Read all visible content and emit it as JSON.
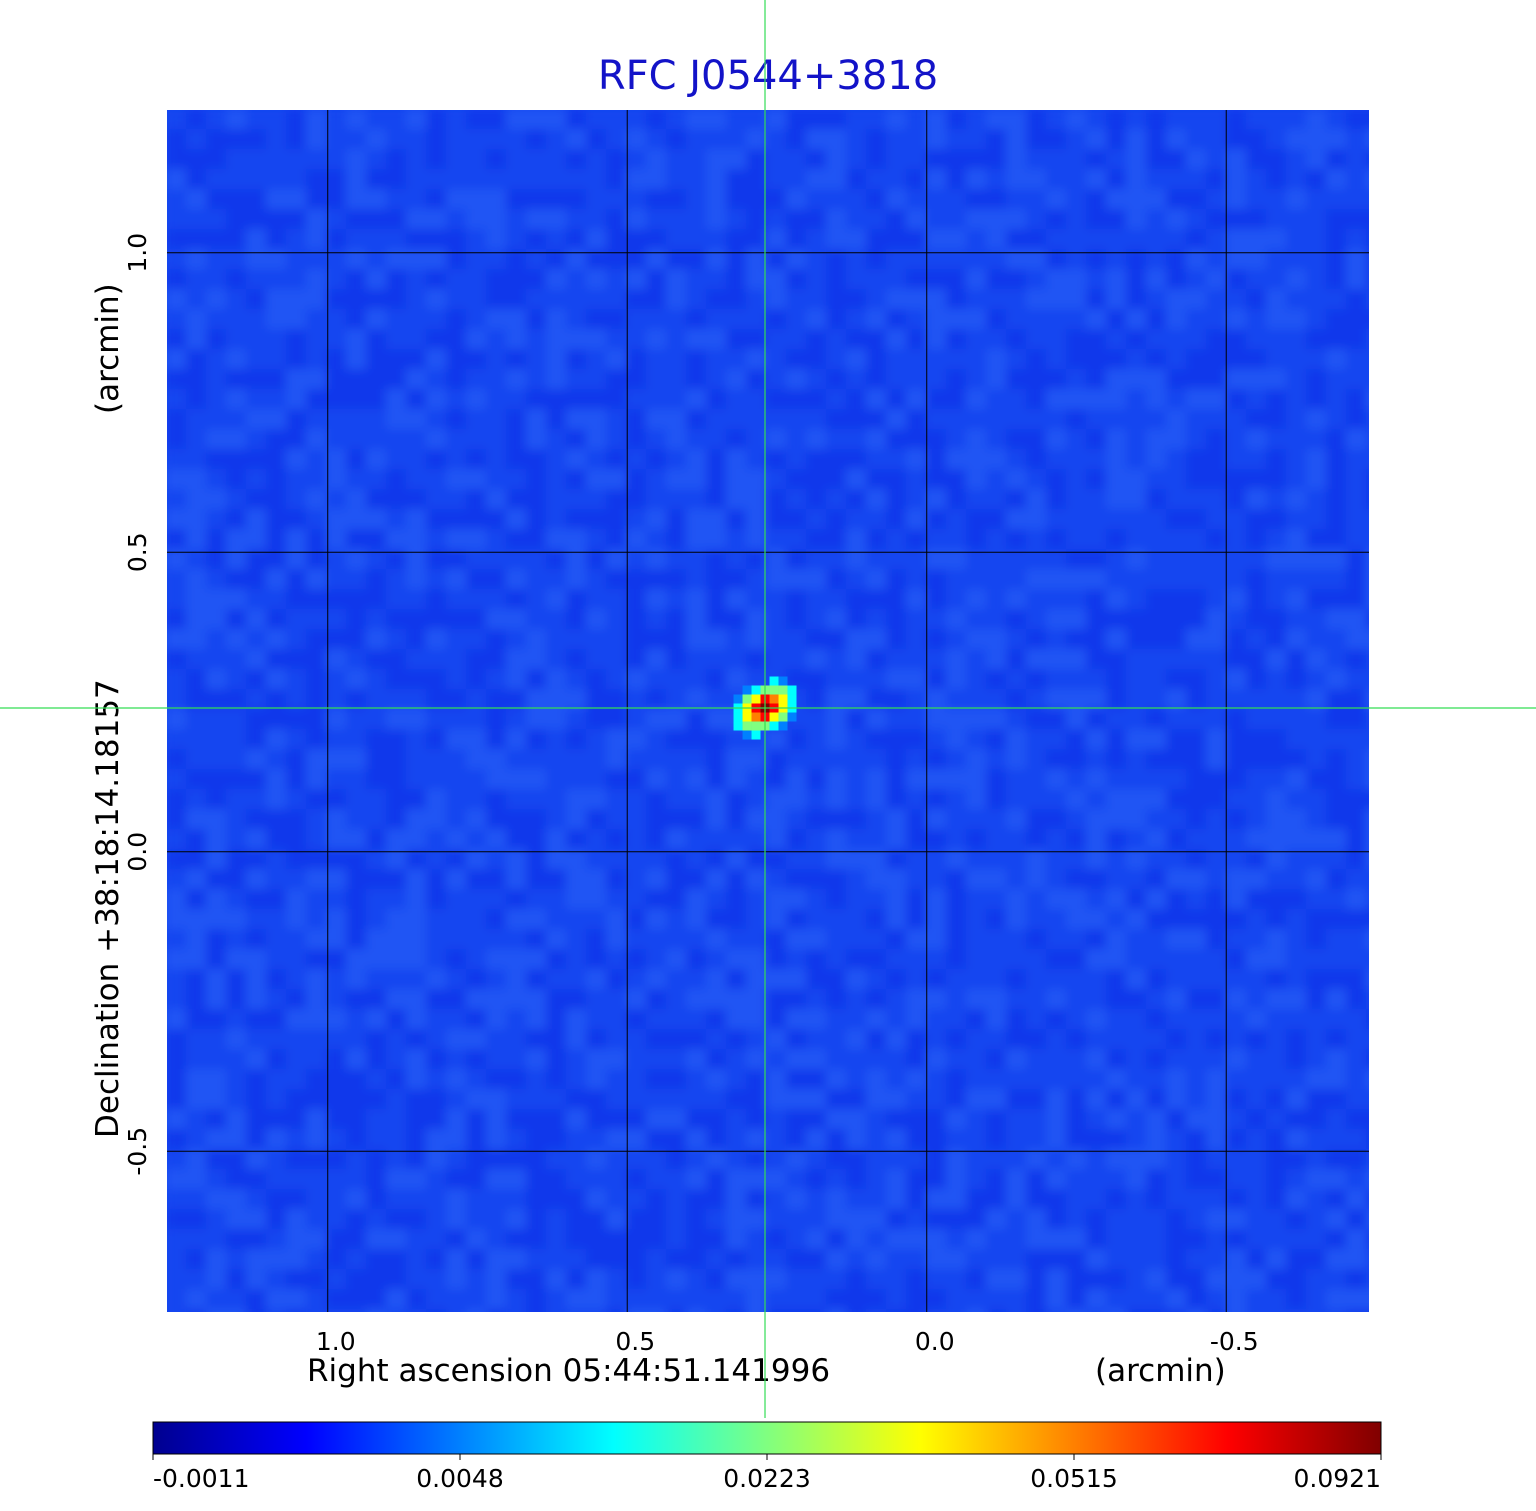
{
  "chart_data": {
    "type": "heatmap",
    "title": "RFC J0544+3818",
    "xlabel": "Right ascension  05:44:51.141996",
    "ylabel": "Declination  +38:18:14.18157",
    "x_unit_label": "(arcmin)",
    "y_unit_label": "(arcmin)",
    "xlim": [
      1.27,
      -0.74
    ],
    "ylim": [
      -0.77,
      1.24
    ],
    "x_ticks": [
      1.0,
      0.5,
      0.0,
      -0.5
    ],
    "x_tick_labels": [
      "1.0",
      "0.5",
      "0.0",
      "-0.5"
    ],
    "y_ticks": [
      1.0,
      0.5,
      0.0,
      -0.5
    ],
    "y_tick_labels": [
      "1.0",
      "0.5",
      "0.0",
      "-0.5"
    ],
    "grid": true,
    "crosshair": {
      "x": 0.27,
      "y": 0.24
    },
    "source_peak": {
      "x": 0.28,
      "y": 0.24,
      "value": 0.0921
    },
    "colorbar": {
      "orientation": "horizontal",
      "position": "bottom",
      "tick_labels": [
        "-0.0011",
        "0.0048",
        "0.0223",
        "0.0515",
        "0.0921"
      ],
      "colormap": [
        "#00008f",
        "#0000ff",
        "#0080ff",
        "#00ffff",
        "#80ff80",
        "#ffff00",
        "#ff8000",
        "#ff0000",
        "#800000"
      ]
    },
    "background_color": "#1446f0"
  }
}
